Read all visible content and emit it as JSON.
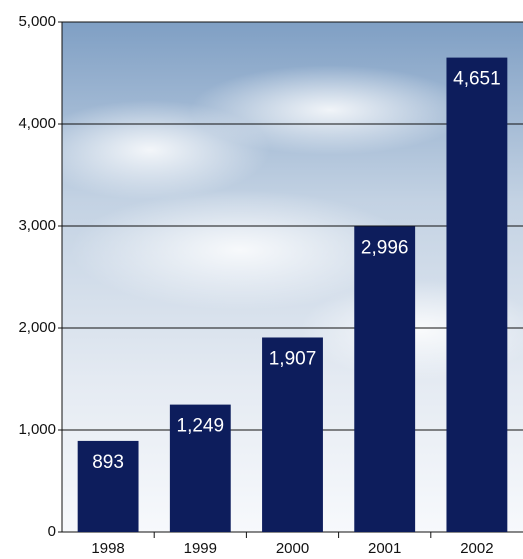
{
  "chart_data": {
    "type": "bar",
    "categories": [
      "1998",
      "1999",
      "2000",
      "2001",
      "2002"
    ],
    "values": [
      893,
      1249,
      1907,
      2996,
      4651
    ],
    "value_labels": [
      "893",
      "1,249",
      "1,907",
      "2,996",
      "4,651"
    ],
    "color": "#0d1d5c",
    "ylim": [
      0,
      5000
    ],
    "yticks": [
      0,
      {
        "value": 1000,
        "label": "1,000"
      },
      {
        "value": 2000,
        "label": "2,000"
      },
      {
        "value": 3000,
        "label": "3,000"
      },
      {
        "value": 4000,
        "label": "4,000"
      },
      {
        "value": 5000,
        "label": "5,000"
      }
    ],
    "grid": true
  }
}
